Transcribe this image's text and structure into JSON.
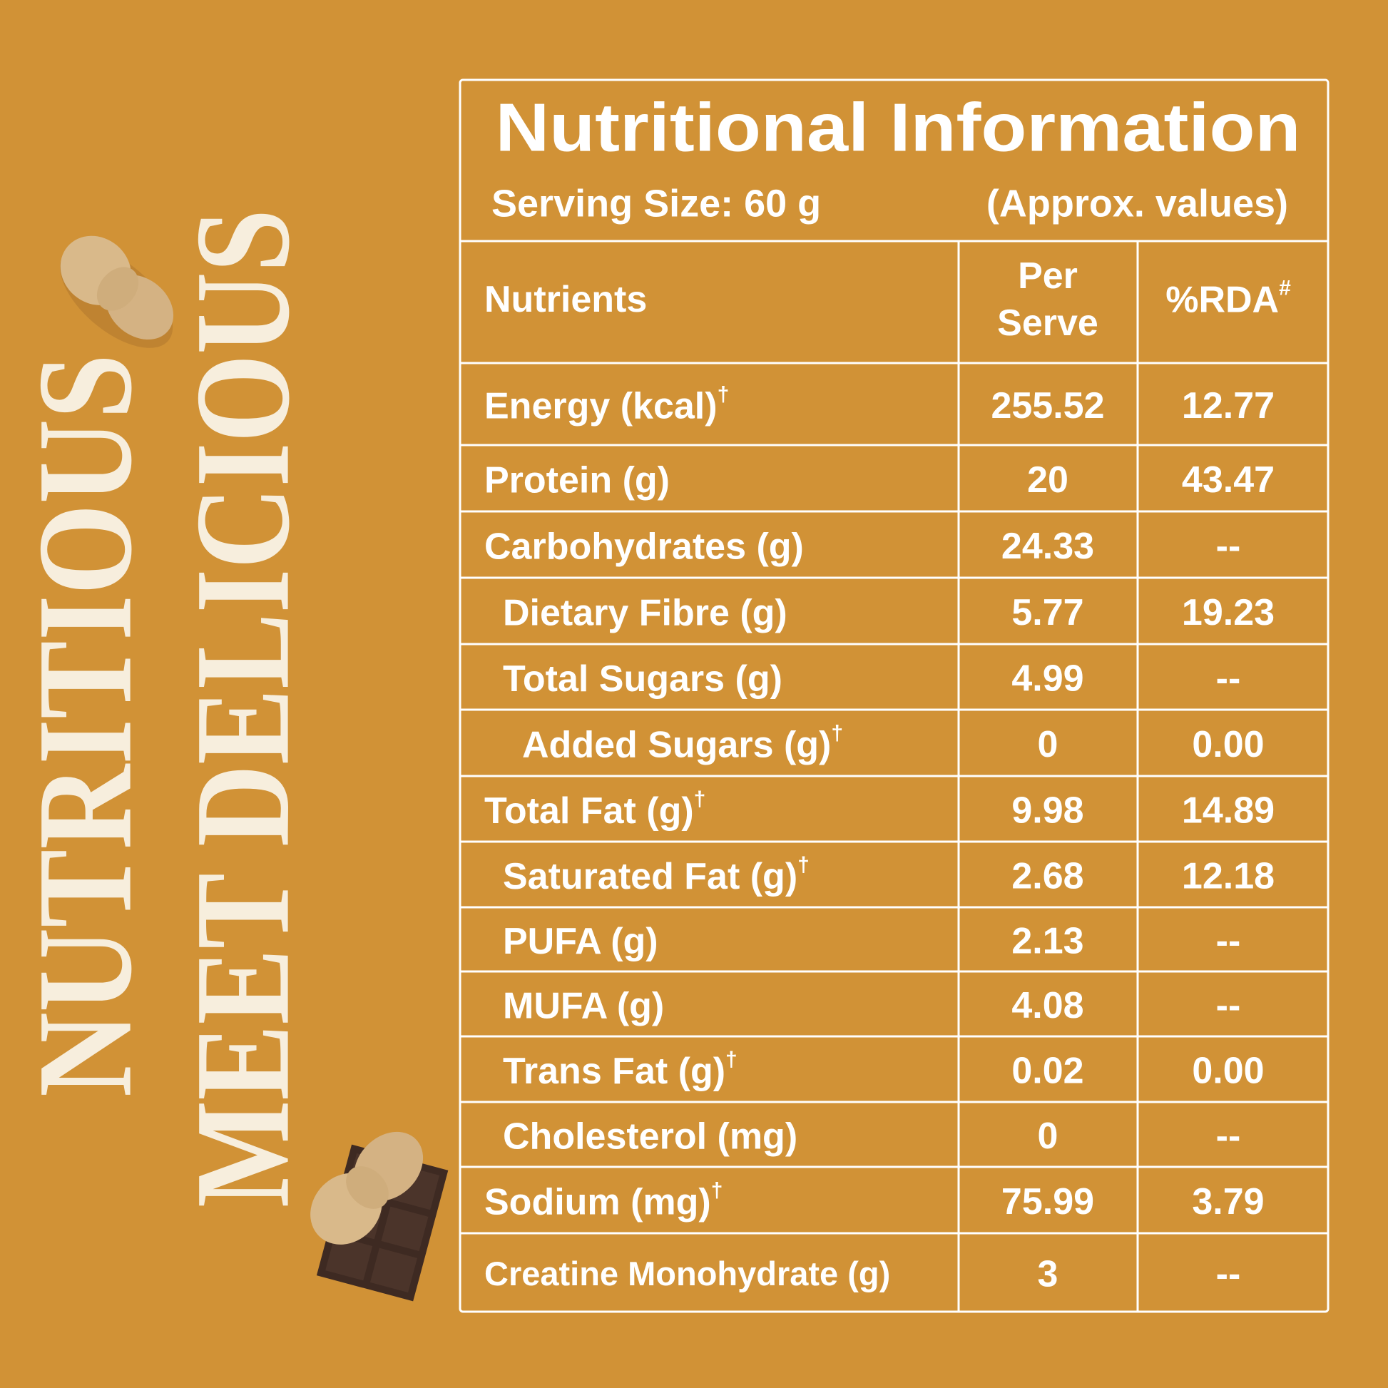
{
  "side_text": [
    "NUTRITIOUS",
    "MEET DELICIOUS"
  ],
  "header": {
    "title": "Nutritional Information",
    "serving_size": "Serving Size: 60 g",
    "note": "(Approx. values)"
  },
  "table": {
    "columns": {
      "nutrients": "Nutrients",
      "per_serve": [
        "Per",
        "Serve"
      ],
      "rda": "%RDA",
      "rda_mark": "#"
    },
    "rows": [
      {
        "nutrient": "Energy (kcal)",
        "mark": "†",
        "per_serve": "255.52",
        "rda": "12.77"
      },
      {
        "nutrient": "Protein (g)",
        "per_serve": "20",
        "rda": "43.47"
      },
      {
        "nutrient": "Carbohydrates (g)",
        "per_serve": "24.33",
        "rda": "--"
      },
      {
        "nutrient": "Dietary Fibre (g)",
        "per_serve": "5.77",
        "rda": "19.23"
      },
      {
        "nutrient": "Total Sugars (g)",
        "per_serve": "4.99",
        "rda": "--"
      },
      {
        "nutrient": "Added Sugars (g)",
        "mark": "†",
        "per_serve": "0",
        "rda": "0.00"
      },
      {
        "nutrient": "Total Fat (g)",
        "mark": "†",
        "per_serve": "9.98",
        "rda": "14.89"
      },
      {
        "nutrient": "Saturated Fat (g)",
        "mark": "†",
        "per_serve": "2.68",
        "rda": "12.18"
      },
      {
        "nutrient": "PUFA (g)",
        "per_serve": "2.13",
        "rda": "--"
      },
      {
        "nutrient": "MUFA (g)",
        "per_serve": "4.08",
        "rda": "--"
      },
      {
        "nutrient": "Trans Fat (g)",
        "mark": "†",
        "per_serve": "0.02",
        "rda": "0.00"
      },
      {
        "nutrient": "Cholesterol (mg)",
        "per_serve": "0",
        "rda": "--"
      },
      {
        "nutrient": "Sodium (mg)",
        "mark": "†",
        "per_serve": "75.99",
        "rda": "3.79"
      },
      {
        "nutrient": "Creatine Monohydrate (g)",
        "per_serve": "3",
        "rda": "--"
      }
    ]
  }
}
